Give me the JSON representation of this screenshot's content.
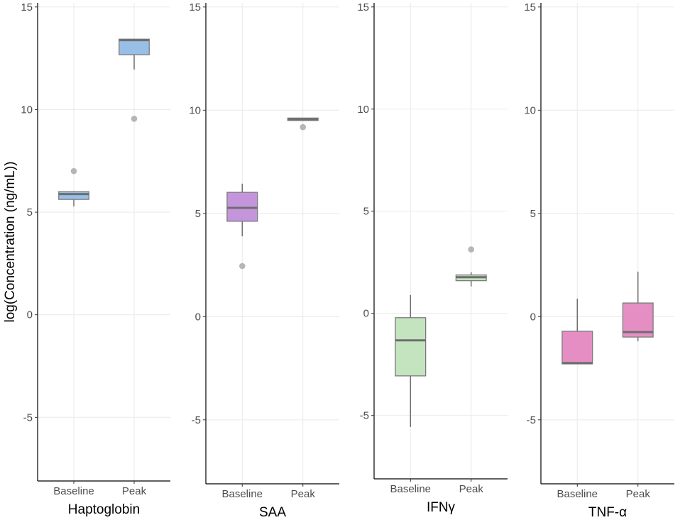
{
  "colors": {
    "background": "#ffffff",
    "grid": "#ebebeb",
    "axis": "#000000",
    "tick_mark": "#333333",
    "tick_label": "#4d4d4d",
    "axis_title": "#000000",
    "box_border": "#7b7b7b",
    "whisker": "#6f6f6f",
    "median": "#6e6e6e",
    "outlier": "#a9a9a9"
  },
  "chart_data": [
    {
      "type": "box",
      "xlabel": "Haptoglobin",
      "ylabel": "log(Concentration (ng/mL))",
      "ylim": [
        -8.1,
        15.2
      ],
      "yticks": [
        15,
        10,
        5,
        0,
        -5
      ],
      "categories": [
        "Baseline",
        "Peak"
      ],
      "grid": true,
      "fill": "#98bfe7",
      "boxes": [
        {
          "whisker_low": 5.28,
          "q1": 5.62,
          "median": 5.88,
          "q3": 6.0,
          "whisker_high": 6.0,
          "outliers": [
            7.0
          ]
        },
        {
          "whisker_low": 11.95,
          "q1": 12.67,
          "median": 13.38,
          "q3": 13.43,
          "whisker_high": 13.43,
          "outliers": [
            9.55
          ]
        }
      ]
    },
    {
      "type": "box",
      "xlabel": "SAA",
      "ylim": [
        -8.1,
        15.2
      ],
      "yticks": [
        15,
        10,
        5,
        0,
        -5
      ],
      "categories": [
        "Baseline",
        "Peak"
      ],
      "grid": true,
      "fill": "#c595dc",
      "boxes": [
        {
          "whisker_low": 3.89,
          "q1": 4.62,
          "median": 5.27,
          "q3": 6.02,
          "whisker_high": 6.44,
          "outliers": [
            2.45
          ]
        },
        {
          "whisker_low": 9.5,
          "q1": 9.5,
          "median": 9.56,
          "q3": 9.62,
          "whisker_high": 9.62,
          "outliers": [
            9.18
          ]
        }
      ]
    },
    {
      "type": "box",
      "xlabel": "IFNγ",
      "ylim": [
        -8.1,
        15.2
      ],
      "yticks": [
        15,
        10,
        5,
        0,
        -5
      ],
      "categories": [
        "Baseline",
        "Peak"
      ],
      "grid": true,
      "fill": "#c4e3bf",
      "boxes": [
        {
          "whisker_low": -5.56,
          "q1": -3.06,
          "median": -1.32,
          "q3": -0.21,
          "whisker_high": 0.9,
          "outliers": []
        },
        {
          "whisker_low": 1.32,
          "q1": 1.6,
          "median": 1.77,
          "q3": 1.88,
          "whisker_high": 2.02,
          "outliers": [
            3.13
          ]
        }
      ]
    },
    {
      "type": "box",
      "xlabel": "TNF-α",
      "ylim": [
        -8.1,
        15.2
      ],
      "yticks": [
        15,
        10,
        5,
        0,
        -5
      ],
      "categories": [
        "Baseline",
        "Peak"
      ],
      "grid": true,
      "fill": "#e58ec3",
      "boxes": [
        {
          "whisker_low": -2.29,
          "q1": -2.29,
          "median": -2.25,
          "q3": -0.71,
          "whisker_high": 0.87,
          "outliers": []
        },
        {
          "whisker_low": -1.19,
          "q1": -0.99,
          "median": -0.75,
          "q3": 0.66,
          "whisker_high": 2.18,
          "outliers": []
        }
      ]
    }
  ]
}
